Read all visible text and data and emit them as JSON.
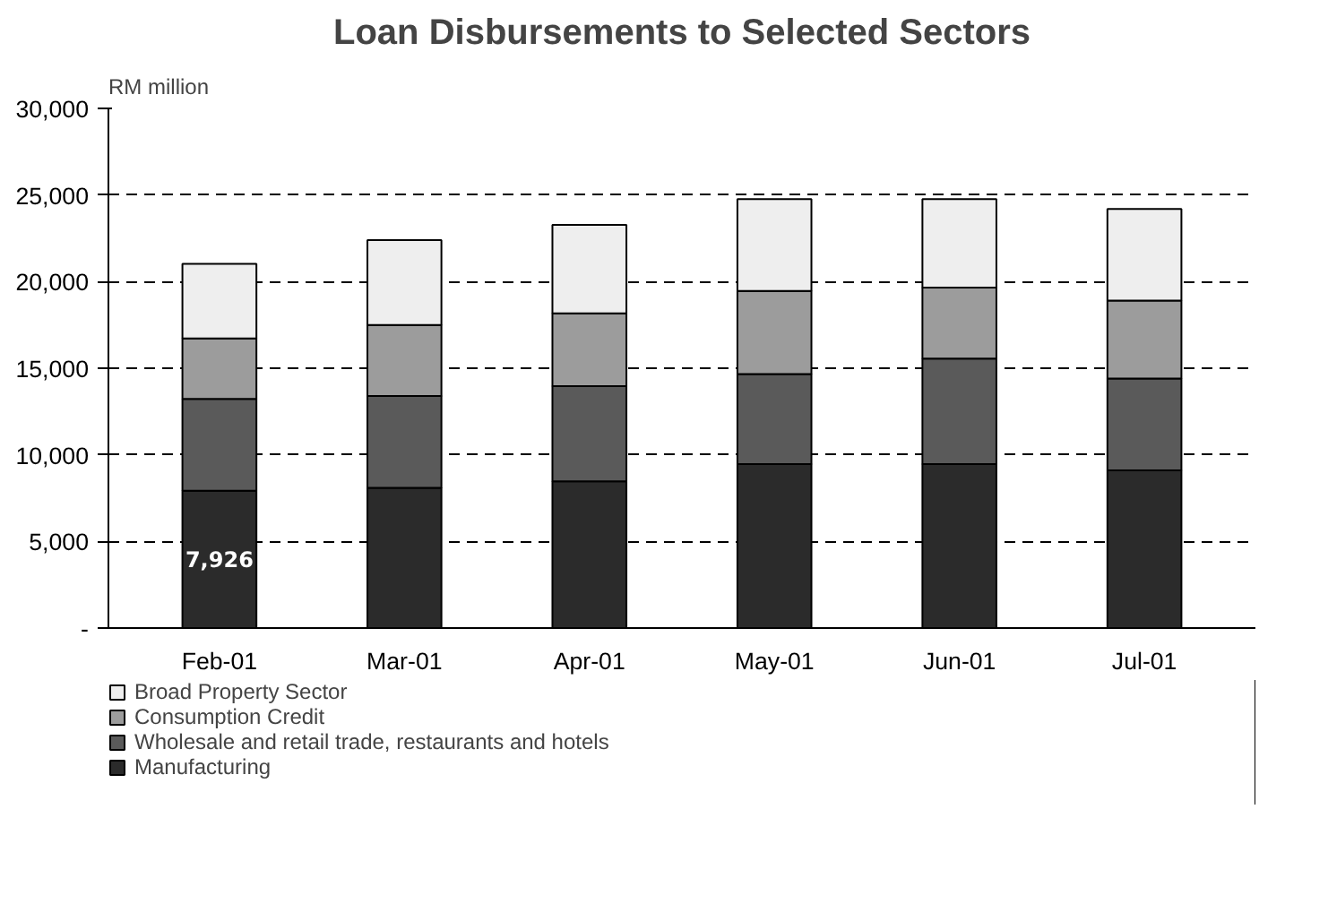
{
  "chart_data": {
    "type": "bar",
    "stacked": true,
    "title": "Loan Disbursements to Selected Sectors",
    "ylabel": "RM million",
    "categories": [
      "Feb-01",
      "Mar-01",
      "Apr-01",
      "May-01",
      "Jun-01",
      "Jul-01"
    ],
    "series": [
      {
        "name": "Manufacturing",
        "color": "#2b2b2b",
        "values": [
          7926,
          8100,
          8470,
          9460,
          9460,
          9100
        ],
        "value_labels": [
          "7,926",
          null,
          null,
          null,
          null,
          null
        ]
      },
      {
        "name": "Wholesale and retail trade, restaurants and hotels",
        "color": "#5a5a5a",
        "values": [
          5300,
          5300,
          5500,
          5200,
          6100,
          5300
        ]
      },
      {
        "name": "Consumption Credit",
        "color": "#9c9c9c",
        "values": [
          3500,
          4100,
          4200,
          4800,
          4100,
          4500
        ]
      },
      {
        "name": "Broad Property Sector",
        "color": "#eeeeee",
        "values": [
          4300,
          4900,
          5100,
          5300,
          5100,
          5300
        ]
      }
    ],
    "ylim": [
      0,
      30000
    ],
    "yticks": [
      {
        "value": 0,
        "label": "-"
      },
      {
        "value": 5000,
        "label": "5,000"
      },
      {
        "value": 10000,
        "label": "10,000"
      },
      {
        "value": 15000,
        "label": "15,000"
      },
      {
        "value": 20000,
        "label": "20,000"
      },
      {
        "value": 25000,
        "label": "25,000"
      },
      {
        "value": 30000,
        "label": "30,000"
      }
    ],
    "grid": "y",
    "legend": "bottom"
  }
}
